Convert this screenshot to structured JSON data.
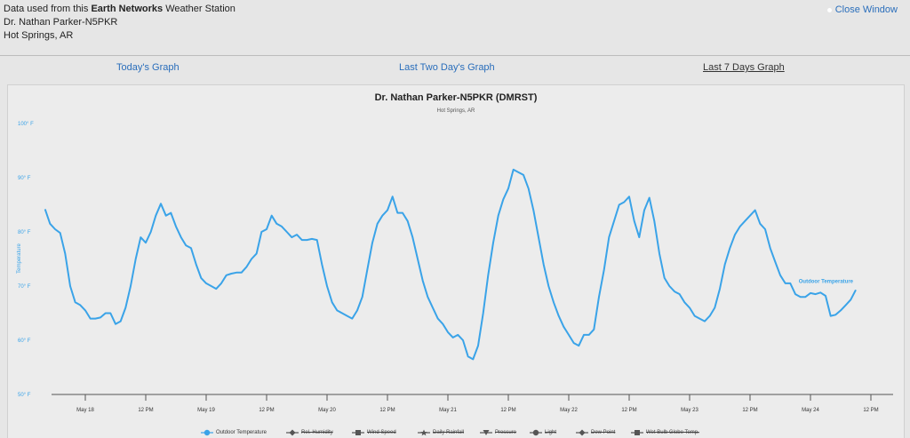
{
  "header": {
    "line1_prefix": "Data used from this ",
    "line1_bold": "Earth Networks",
    "line1_suffix": " Weather Station",
    "station": "Dr. Nathan Parker-N5PKR",
    "location": "Hot Springs, AR"
  },
  "close_label": "Close Window",
  "tabs": [
    {
      "label": "Today's Graph",
      "active": false
    },
    {
      "label": "Last Two Day's Graph",
      "active": false
    },
    {
      "label": "Last 7 Days Graph",
      "active": true
    }
  ],
  "colors": {
    "series": "#3aa3e8",
    "link": "#2a6ebb"
  },
  "chart_data": {
    "type": "line",
    "title": "Dr. Nathan Parker-N5PKR (DMRST)",
    "subtitle": "Hot Springs, AR",
    "ylabel": "Temperature",
    "ylim": [
      50,
      100
    ],
    "yticks": [
      "50° F",
      "60° F",
      "70° F",
      "80° F",
      "90° F",
      "100° F"
    ],
    "xlim": [
      "May 17 16:00",
      "May 24 20:00"
    ],
    "xticks": [
      "May 18",
      "12 PM",
      "May 19",
      "12 PM",
      "May 20",
      "12 PM",
      "May 21",
      "12 PM",
      "May 22",
      "12 PM",
      "May 23",
      "12 PM",
      "May 24",
      "12 PM"
    ],
    "series": [
      {
        "name": "Outdoor Temperature",
        "x_hours_note": "",
        "points": [
          [
            "May 17 16:00",
            84.2
          ],
          [
            "May 17 17:00",
            81.5
          ],
          [
            "May 17 18:00",
            80.5
          ],
          [
            "May 17 19:00",
            79.8
          ],
          [
            "May 17 20:00",
            76
          ],
          [
            "May 17 21:00",
            70
          ],
          [
            "May 17 22:00",
            67
          ],
          [
            "May 17 23:00",
            66.5
          ],
          [
            "May 18 00:00",
            65.5
          ],
          [
            "May 18 01:00",
            64
          ],
          [
            "May 18 02:00",
            64
          ],
          [
            "May 18 03:00",
            64.2
          ],
          [
            "May 18 04:00",
            65
          ],
          [
            "May 18 05:00",
            65
          ],
          [
            "May 18 06:00",
            63
          ],
          [
            "May 18 07:00",
            63.5
          ],
          [
            "May 18 08:00",
            66
          ],
          [
            "May 18 09:00",
            70
          ],
          [
            "May 18 10:00",
            75
          ],
          [
            "May 18 11:00",
            79
          ],
          [
            "May 18 12:00",
            78
          ],
          [
            "May 18 13:00",
            80
          ],
          [
            "May 18 14:00",
            83
          ],
          [
            "May 18 15:00",
            85.2
          ],
          [
            "May 18 16:00",
            83
          ],
          [
            "May 18 17:00",
            83.5
          ],
          [
            "May 18 18:00",
            81
          ],
          [
            "May 18 19:00",
            79
          ],
          [
            "May 18 20:00",
            77.5
          ],
          [
            "May 18 21:00",
            77
          ],
          [
            "May 18 22:00",
            74
          ],
          [
            "May 18 23:00",
            71.5
          ],
          [
            "May 19 00:00",
            70.5
          ],
          [
            "May 19 01:00",
            70
          ],
          [
            "May 19 02:00",
            69.5
          ],
          [
            "May 19 03:00",
            70.5
          ],
          [
            "May 19 04:00",
            72
          ],
          [
            "May 19 05:00",
            72.3
          ],
          [
            "May 19 06:00",
            72.5
          ],
          [
            "May 19 07:00",
            72.5
          ],
          [
            "May 19 08:00",
            73.5
          ],
          [
            "May 19 09:00",
            75
          ],
          [
            "May 19 10:00",
            76
          ],
          [
            "May 19 11:00",
            80
          ],
          [
            "May 19 12:00",
            80.5
          ],
          [
            "May 19 13:00",
            83
          ],
          [
            "May 19 14:00",
            81.5
          ],
          [
            "May 19 15:00",
            81
          ],
          [
            "May 19 16:00",
            80
          ],
          [
            "May 19 17:00",
            79
          ],
          [
            "May 19 18:00",
            79.5
          ],
          [
            "May 19 19:00",
            78.5
          ],
          [
            "May 19 20:00",
            78.5
          ],
          [
            "May 19 21:00",
            78.7
          ],
          [
            "May 19 22:00",
            78.5
          ],
          [
            "May 19 23:00",
            74
          ],
          [
            "May 20 00:00",
            70
          ],
          [
            "May 20 01:00",
            67
          ],
          [
            "May 20 02:00",
            65.5
          ],
          [
            "May 20 03:00",
            65
          ],
          [
            "May 20 04:00",
            64.5
          ],
          [
            "May 20 05:00",
            64
          ],
          [
            "May 20 06:00",
            65.5
          ],
          [
            "May 20 07:00",
            68
          ],
          [
            "May 20 08:00",
            73
          ],
          [
            "May 20 09:00",
            78
          ],
          [
            "May 20 10:00",
            81.5
          ],
          [
            "May 20 11:00",
            83
          ],
          [
            "May 20 12:00",
            84
          ],
          [
            "May 20 13:00",
            86.5
          ],
          [
            "May 20 14:00",
            83.5
          ],
          [
            "May 20 15:00",
            83.5
          ],
          [
            "May 20 16:00",
            82
          ],
          [
            "May 20 17:00",
            79
          ],
          [
            "May 20 18:00",
            75
          ],
          [
            "May 20 19:00",
            71
          ],
          [
            "May 20 20:00",
            68
          ],
          [
            "May 20 21:00",
            66
          ],
          [
            "May 20 22:00",
            64
          ],
          [
            "May 20 23:00",
            63
          ],
          [
            "May 21 00:00",
            61.5
          ],
          [
            "May 21 01:00",
            60.5
          ],
          [
            "May 21 02:00",
            61
          ],
          [
            "May 21 03:00",
            60
          ],
          [
            "May 21 04:00",
            57
          ],
          [
            "May 21 05:00",
            56.5
          ],
          [
            "May 21 06:00",
            59
          ],
          [
            "May 21 07:00",
            65
          ],
          [
            "May 21 08:00",
            72
          ],
          [
            "May 21 09:00",
            78
          ],
          [
            "May 21 10:00",
            83
          ],
          [
            "May 21 11:00",
            86
          ],
          [
            "May 21 12:00",
            88
          ],
          [
            "May 21 13:00",
            91.5
          ],
          [
            "May 21 14:00",
            91
          ],
          [
            "May 21 15:00",
            90.5
          ],
          [
            "May 21 16:00",
            88
          ],
          [
            "May 21 17:00",
            84
          ],
          [
            "May 21 18:00",
            79
          ],
          [
            "May 21 19:00",
            74
          ],
          [
            "May 21 20:00",
            70
          ],
          [
            "May 21 21:00",
            67
          ],
          [
            "May 21 22:00",
            64.5
          ],
          [
            "May 21 23:00",
            62.5
          ],
          [
            "May 22 00:00",
            61
          ],
          [
            "May 22 01:00",
            59.5
          ],
          [
            "May 22 02:00",
            59
          ],
          [
            "May 22 03:00",
            61
          ],
          [
            "May 22 04:00",
            61
          ],
          [
            "May 22 05:00",
            62
          ],
          [
            "May 22 06:00",
            68
          ],
          [
            "May 22 07:00",
            73
          ],
          [
            "May 22 08:00",
            79
          ],
          [
            "May 22 09:00",
            82
          ],
          [
            "May 22 10:00",
            85
          ],
          [
            "May 22 11:00",
            85.5
          ],
          [
            "May 22 12:00",
            86.5
          ],
          [
            "May 22 13:00",
            82
          ],
          [
            "May 22 14:00",
            79
          ],
          [
            "May 22 15:00",
            84
          ],
          [
            "May 22 16:00",
            86.3
          ],
          [
            "May 22 17:00",
            82
          ],
          [
            "May 22 18:00",
            76
          ],
          [
            "May 22 19:00",
            71.5
          ],
          [
            "May 22 20:00",
            70
          ],
          [
            "May 22 21:00",
            69
          ],
          [
            "May 22 22:00",
            68.5
          ],
          [
            "May 22 23:00",
            67
          ],
          [
            "May 23 00:00",
            66
          ],
          [
            "May 23 01:00",
            64.5
          ],
          [
            "May 23 02:00",
            64
          ],
          [
            "May 23 03:00",
            63.5
          ],
          [
            "May 23 04:00",
            64.5
          ],
          [
            "May 23 05:00",
            66
          ],
          [
            "May 23 06:00",
            69.5
          ],
          [
            "May 23 07:00",
            74
          ],
          [
            "May 23 08:00",
            77
          ],
          [
            "May 23 09:00",
            79.5
          ],
          [
            "May 23 10:00",
            81
          ],
          [
            "May 23 11:00",
            82
          ],
          [
            "May 23 12:00",
            83
          ],
          [
            "May 23 13:00",
            84
          ],
          [
            "May 23 14:00",
            81.5
          ],
          [
            "May 23 15:00",
            80.5
          ],
          [
            "May 23 16:00",
            77
          ],
          [
            "May 23 17:00",
            74.5
          ],
          [
            "May 23 18:00",
            72
          ],
          [
            "May 23 19:00",
            70.5
          ],
          [
            "May 23 20:00",
            70.5
          ],
          [
            "May 23 21:00",
            68.5
          ],
          [
            "May 23 22:00",
            68
          ],
          [
            "May 23 23:00",
            68
          ],
          [
            "May 24 00:00",
            68.7
          ],
          [
            "May 24 01:00",
            68.5
          ],
          [
            "May 24 02:00",
            68.8
          ],
          [
            "May 24 03:00",
            68.2
          ],
          [
            "May 24 04:00",
            64.5
          ],
          [
            "May 24 05:00",
            64.7
          ],
          [
            "May 24 06:00",
            65.5
          ],
          [
            "May 24 07:00",
            66.5
          ],
          [
            "May 24 08:00",
            67.5
          ],
          [
            "May 24 09:00",
            69.3
          ]
        ]
      }
    ],
    "series_label": "Outdoor Temperature",
    "legend": [
      {
        "label": "Outdoor Temperature",
        "icon": "circle",
        "active": true
      },
      {
        "label": "Rel. Humidity",
        "icon": "diamond",
        "active": false
      },
      {
        "label": "Wind Speed",
        "icon": "square",
        "active": false
      },
      {
        "label": "Daily Rainfall",
        "icon": "star",
        "active": false
      },
      {
        "label": "Pressure",
        "icon": "triangle-down",
        "active": false
      },
      {
        "label": "Light",
        "icon": "circle",
        "active": false
      },
      {
        "label": "Dew Point",
        "icon": "diamond",
        "active": false
      },
      {
        "label": "Wet Bulb Globe Temp.",
        "icon": "square",
        "active": false
      }
    ]
  }
}
